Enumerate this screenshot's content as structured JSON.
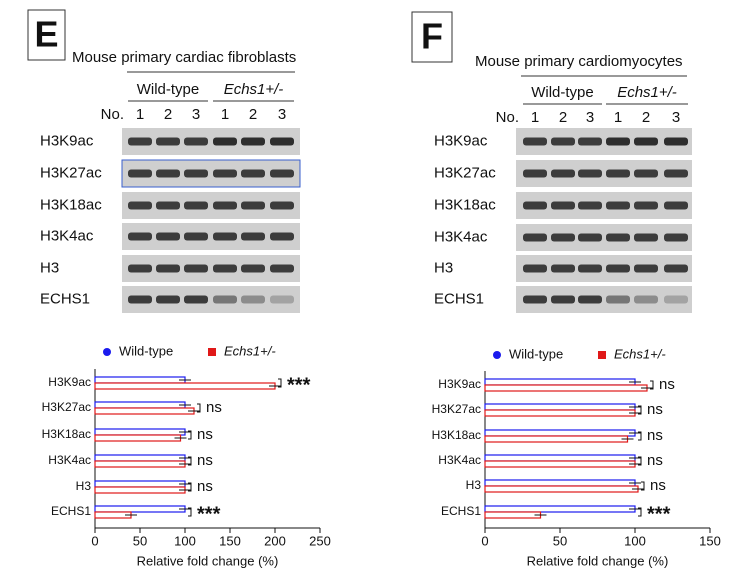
{
  "panels": [
    {
      "label": "E",
      "title": "Mouse primary cardiac fibroblasts",
      "groups": [
        "Wild-type",
        "Echs1+/-"
      ],
      "lane_header": "No.",
      "lanes": [
        "1",
        "2",
        "3",
        "1",
        "2",
        "3"
      ],
      "blots": [
        "H3K9ac",
        "H3K27ac",
        "H3K18ac",
        "H3K4ac",
        "H3",
        "ECHS1"
      ]
    },
    {
      "label": "F",
      "title": "Mouse primary cardiomyocytes",
      "groups": [
        "Wild-type",
        "Echs1+/-"
      ],
      "lane_header": "No.",
      "lanes": [
        "1",
        "2",
        "3",
        "1",
        "2",
        "3"
      ],
      "blots": [
        "H3K9ac",
        "H3K27ac",
        "H3K18ac",
        "H3K4ac",
        "H3",
        "ECHS1"
      ]
    }
  ],
  "chart_data": [
    {
      "type": "bar",
      "orientation": "horizontal",
      "categories": [
        "H3K9ac",
        "H3K27ac",
        "H3K18ac",
        "H3K4ac",
        "H3",
        "ECHS1"
      ],
      "series": [
        {
          "name": "Wild-type",
          "color": "#1a1aee",
          "values": [
            100,
            100,
            100,
            100,
            100,
            100
          ]
        },
        {
          "name": "Echs1+/-",
          "color": "#e01818",
          "values": [
            200,
            110,
            95,
            100,
            100,
            40
          ]
        }
      ],
      "annotations": [
        "***",
        "ns",
        "ns",
        "ns",
        "ns",
        "***"
      ],
      "xlim": [
        0,
        250
      ],
      "xticks": [
        0,
        50,
        100,
        150,
        200,
        250
      ],
      "xlabel": "Relative fold change (%)"
    },
    {
      "type": "bar",
      "orientation": "horizontal",
      "categories": [
        "H3K9ac",
        "H3K27ac",
        "H3K18ac",
        "H3K4ac",
        "H3",
        "ECHS1"
      ],
      "series": [
        {
          "name": "Wild-type",
          "color": "#1a1aee",
          "values": [
            100,
            100,
            100,
            100,
            100,
            100
          ]
        },
        {
          "name": "Echs1+/-",
          "color": "#e01818",
          "values": [
            108,
            100,
            95,
            100,
            102,
            37
          ]
        }
      ],
      "annotations": [
        "ns",
        "ns",
        "ns",
        "ns",
        "ns",
        "***"
      ],
      "xlim": [
        0,
        150
      ],
      "xticks": [
        0,
        50,
        100,
        150
      ],
      "xlabel": "Relative fold change (%)"
    }
  ]
}
